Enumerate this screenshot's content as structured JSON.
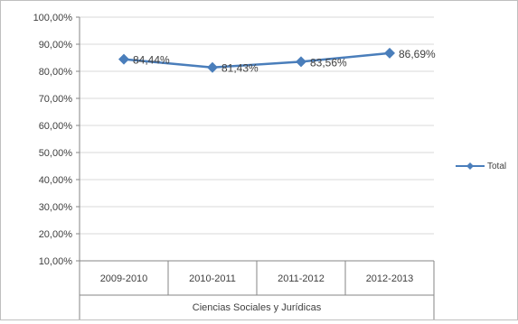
{
  "chart_data": {
    "type": "line",
    "categories": [
      "2009-2010",
      "2010-2011",
      "2011-2012",
      "2012-2013"
    ],
    "group_label": "Ciencias Sociales y Jurídicas",
    "series": [
      {
        "name": "Total",
        "values": [
          84.44,
          81.43,
          83.56,
          86.69
        ],
        "labels": [
          "84,44%",
          "81,43%",
          "83,56%",
          "86,69%"
        ],
        "color": "#4a7ebb"
      }
    ],
    "y_ticks": [
      "100,00%",
      "90,00%",
      "80,00%",
      "70,00%",
      "60,00%",
      "50,00%",
      "40,00%",
      "30,00%",
      "20,00%",
      "10,00%"
    ],
    "ylim": [
      10,
      100
    ],
    "grid": true,
    "legend_position": "right"
  }
}
